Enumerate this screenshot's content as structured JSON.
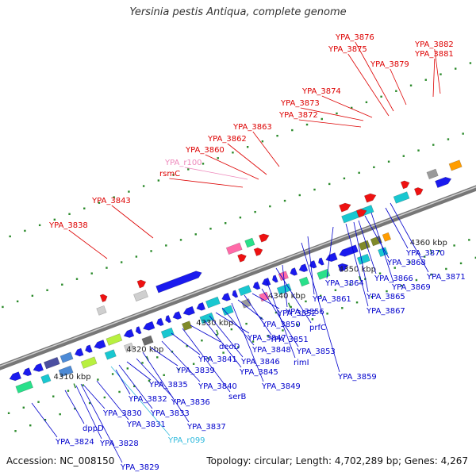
{
  "title": "Yersinia pestis Antiqua, complete genome",
  "accession_text": "Accession: NC_008150",
  "summary_text": "Topology: circular; Length: 4,702,289 bp; Genes: 4,267",
  "colors": {
    "red_label": "#dd0000",
    "blue_label": "#0000cc",
    "pink_label": "#ee88bb",
    "cyan_label": "#33bbdd",
    "backbone": "#999999"
  },
  "scale_labels": [
    "4310 kbp",
    "4320 kbp",
    "4330 kbp",
    "4340 kbp",
    "4350 kbp",
    "4360 kbp"
  ],
  "top_labels": [
    {
      "text": "YPA_3838",
      "color": "red"
    },
    {
      "text": "YPA_3843",
      "color": "red"
    },
    {
      "text": "rsmC",
      "color": "red"
    },
    {
      "text": "YPA_r100",
      "color": "pink"
    },
    {
      "text": "YPA_3860",
      "color": "red"
    },
    {
      "text": "YPA_3862",
      "color": "red"
    },
    {
      "text": "YPA_3863",
      "color": "red"
    },
    {
      "text": "YPA_3872",
      "color": "red"
    },
    {
      "text": "YPA_3873",
      "color": "red"
    },
    {
      "text": "YPA_3874",
      "color": "red"
    },
    {
      "text": "YPA_3875",
      "color": "red"
    },
    {
      "text": "YPA_3876",
      "color": "red"
    },
    {
      "text": "YPA_3879",
      "color": "red"
    },
    {
      "text": "YPA_3881",
      "color": "red"
    },
    {
      "text": "YPA_3882",
      "color": "red"
    }
  ],
  "bottom_labels": [
    {
      "text": "YPA_3824",
      "color": "blue"
    },
    {
      "text": "dppD",
      "color": "blue"
    },
    {
      "text": "YPA_3828",
      "color": "blue"
    },
    {
      "text": "YPA_3829",
      "color": "blue"
    },
    {
      "text": "YPA_3830",
      "color": "blue"
    },
    {
      "text": "YPA_3831",
      "color": "blue"
    },
    {
      "text": "YPA_r099",
      "color": "cyan"
    },
    {
      "text": "YPA_3832",
      "color": "blue"
    },
    {
      "text": "YPA_3833",
      "color": "blue"
    },
    {
      "text": "YPA_3835",
      "color": "blue"
    },
    {
      "text": "YPA_3836",
      "color": "blue"
    },
    {
      "text": "YPA_3837",
      "color": "blue"
    },
    {
      "text": "YPA_3839",
      "color": "blue"
    },
    {
      "text": "YPA_3840",
      "color": "blue"
    },
    {
      "text": "YPA_3841",
      "color": "blue"
    },
    {
      "text": "serB",
      "color": "blue"
    },
    {
      "text": "deoD",
      "color": "blue"
    },
    {
      "text": "YPA_3845",
      "color": "blue"
    },
    {
      "text": "YPA_3846",
      "color": "blue"
    },
    {
      "text": "YPA_3847",
      "color": "blue"
    },
    {
      "text": "YPA_3848",
      "color": "blue"
    },
    {
      "text": "YPA_3849",
      "color": "blue"
    },
    {
      "text": "YPA_3850",
      "color": "blue"
    },
    {
      "text": "YPA_3851",
      "color": "blue"
    },
    {
      "text": "YPA_3852",
      "color": "blue"
    },
    {
      "text": "YPA_3853",
      "color": "blue"
    },
    {
      "text": "rimI",
      "color": "blue"
    },
    {
      "text": "prfC",
      "color": "blue"
    },
    {
      "text": "YPA_3856",
      "color": "blue"
    },
    {
      "text": "YPA_3859",
      "color": "blue"
    },
    {
      "text": "YPA_3861",
      "color": "blue"
    },
    {
      "text": "YPA_3864",
      "color": "blue"
    },
    {
      "text": "YPA_3865",
      "color": "blue"
    },
    {
      "text": "YPA_3866",
      "color": "blue"
    },
    {
      "text": "YPA_3867",
      "color": "blue"
    },
    {
      "text": "YPA_3868",
      "color": "blue"
    },
    {
      "text": "YPA_3869",
      "color": "blue"
    },
    {
      "text": "YPA_3870",
      "color": "blue"
    },
    {
      "text": "YPA_3871",
      "color": "blue"
    }
  ]
}
